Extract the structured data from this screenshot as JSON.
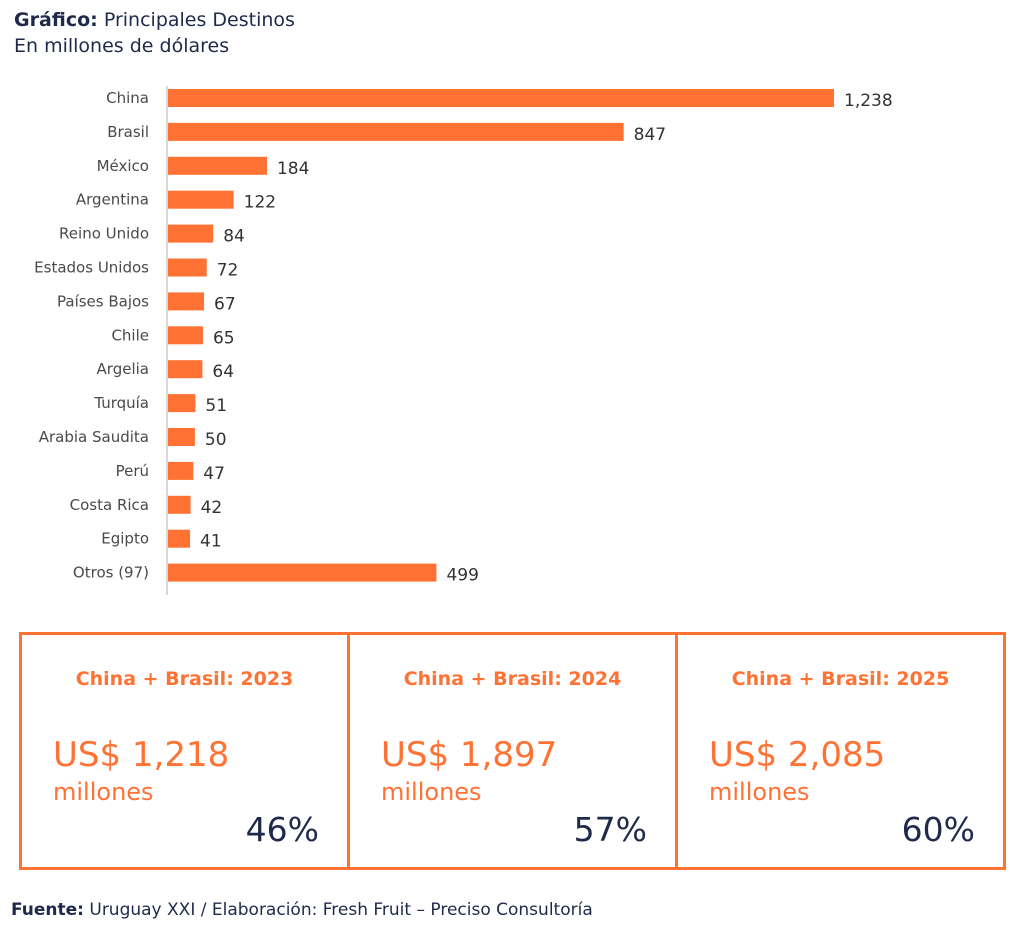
{
  "header": {
    "title_bold": "Gráfico:",
    "title_rest": " Principales Destinos",
    "subtitle": "En millones de dólares"
  },
  "colors": {
    "bar": "#ff7233",
    "text": "#1f2a4a",
    "label": "#4a4a4a",
    "axis": "#d9d9d9"
  },
  "chart_data": {
    "type": "bar",
    "orientation": "horizontal",
    "title": "Principales Destinos",
    "ylabel": "En millones de dólares",
    "categories": [
      "China",
      "Brasil",
      "México",
      "Argentina",
      "Reino Unido",
      "Estados Unidos",
      "Países Bajos",
      "Chile",
      "Argelia",
      "Turquía",
      "Arabia Saudita",
      "Perú",
      "Costa Rica",
      "Egipto",
      "Otros (97)"
    ],
    "values": [
      1238,
      847,
      184,
      122,
      84,
      72,
      67,
      65,
      64,
      51,
      50,
      47,
      42,
      41,
      499
    ],
    "value_labels": [
      "1,238",
      "847",
      "184",
      "122",
      "84",
      "72",
      "67",
      "65",
      "64",
      "51",
      "50",
      "47",
      "42",
      "41",
      "499"
    ],
    "xlim": [
      0,
      1238
    ],
    "grid": false
  },
  "cards": [
    {
      "title": "China + Brasil: 2023",
      "amount": "US$ 1,218",
      "unit": "millones",
      "pct": "46%"
    },
    {
      "title": "China + Brasil: 2024",
      "amount": "US$ 1,897",
      "unit": "millones",
      "pct": "57%"
    },
    {
      "title": "China + Brasil: 2025",
      "amount": "US$ 2,085",
      "unit": "millones",
      "pct": "60%"
    }
  ],
  "footer": {
    "source_bold": "Fuente:",
    "source_rest": " Uruguay XXI / Elaboración: Fresh Fruit – Preciso Consultoría"
  }
}
